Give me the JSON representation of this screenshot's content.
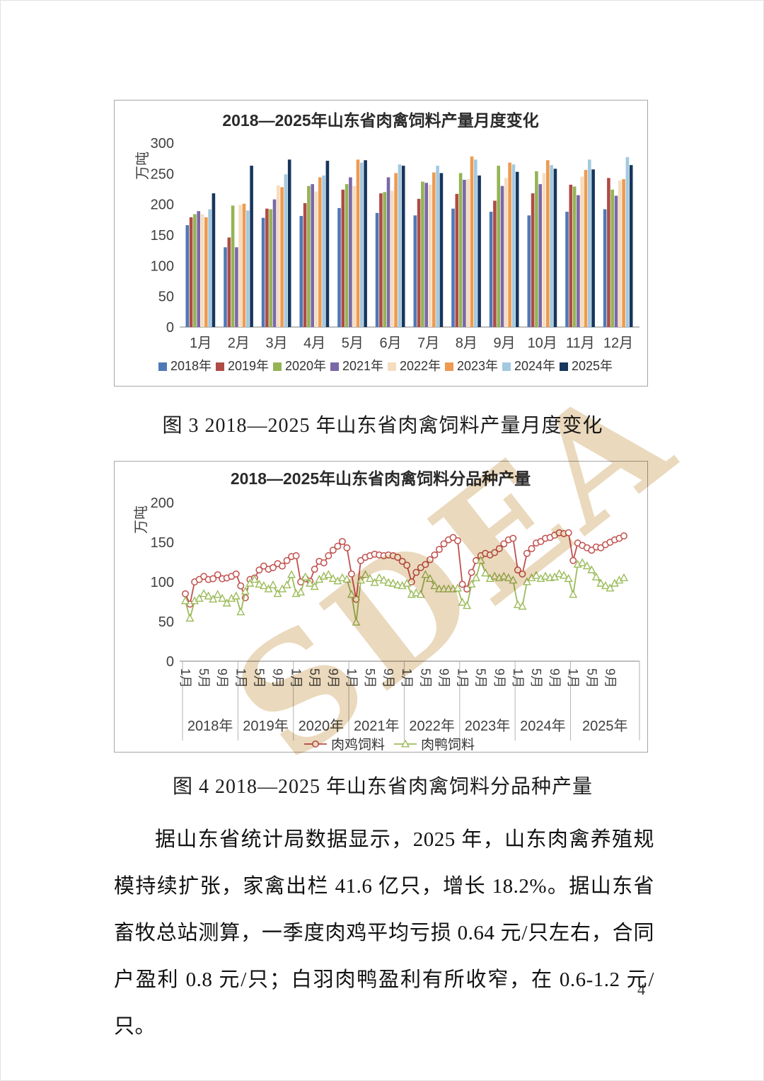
{
  "page_number": "4",
  "caption3": "图 3  2018—2025 年山东省肉禽饲料产量月度变化",
  "caption4": "图 4  2018—2025 年山东省肉禽饲料分品种产量",
  "paragraph": "据山东省统计局数据显示，2025 年，山东肉禽养殖规模持续扩张，家禽出栏 41.6 亿只，增长 18.2%。据山东省畜牧总站测算，一季度肉鸡平均亏损 0.64 元/只左右，合同户盈利 0.8 元/只；白羽肉鸭盈利有所收窄，在 0.6-1.2 元/只。",
  "watermark": {
    "text": "SDEA",
    "color": "#ead9bd"
  },
  "chart_data": [
    {
      "type": "bar",
      "title": "2018—2025年山东省肉禽饲料产量月度变化",
      "ylabel": "万吨",
      "ylim": [
        0,
        300
      ],
      "yticks": [
        0,
        50,
        100,
        150,
        200,
        250,
        300
      ],
      "grid": false,
      "legend_position": "bottom",
      "categories": [
        "1月",
        "2月",
        "3月",
        "4月",
        "5月",
        "6月",
        "7月",
        "8月",
        "9月",
        "10月",
        "11月",
        "12月"
      ],
      "series": [
        {
          "name": "2018年",
          "color": "#4e79b7",
          "values": [
            166,
            130,
            178,
            181,
            194,
            186,
            182,
            193,
            188,
            182,
            188,
            192
          ]
        },
        {
          "name": "2019年",
          "color": "#b04b45",
          "values": [
            179,
            146,
            193,
            202,
            224,
            218,
            209,
            217,
            206,
            218,
            232,
            243
          ]
        },
        {
          "name": "2020年",
          "color": "#94b455",
          "values": [
            184,
            198,
            192,
            230,
            233,
            220,
            237,
            251,
            263,
            254,
            229,
            224
          ]
        },
        {
          "name": "2021年",
          "color": "#7a68a8",
          "values": [
            189,
            130,
            208,
            233,
            244,
            244,
            235,
            240,
            230,
            233,
            215,
            214
          ]
        },
        {
          "name": "2022年",
          "color": "#f6dcbf",
          "values": [
            184,
            199,
            231,
            221,
            230,
            222,
            232,
            241,
            243,
            251,
            245,
            239
          ]
        },
        {
          "name": "2023年",
          "color": "#ed9b50",
          "values": [
            179,
            201,
            228,
            244,
            273,
            251,
            252,
            278,
            268,
            272,
            256,
            241
          ]
        },
        {
          "name": "2024年",
          "color": "#a3c9e0",
          "values": [
            192,
            190,
            249,
            247,
            268,
            265,
            263,
            273,
            265,
            264,
            273,
            277
          ]
        },
        {
          "name": "2025年",
          "color": "#17365d",
          "values": [
            218,
            263,
            273,
            271,
            272,
            263,
            251,
            247,
            253,
            258,
            257,
            264
          ]
        }
      ]
    },
    {
      "type": "line",
      "title": "2018—2025年山东省肉禽饲料分品种产量",
      "ylabel": "万吨",
      "ylim": [
        0,
        200
      ],
      "yticks": [
        0,
        50,
        100,
        150,
        200
      ],
      "grid": false,
      "legend_position": "bottom",
      "years": [
        "2018年",
        "2019年",
        "2020年",
        "2021年",
        "2022年",
        "2023年",
        "2024年",
        "2025年"
      ],
      "month_ticks": [
        "1月",
        "5月",
        "9月"
      ],
      "month_tick_indices": [
        0,
        4,
        8
      ],
      "months_per_year": 12,
      "series": [
        {
          "name": "肉鸡饲料",
          "color": "#c0504d",
          "marker": "circle",
          "values": [
            85,
            72,
            100,
            103,
            107,
            103,
            104,
            109,
            104,
            105,
            107,
            110,
            95,
            80,
            103,
            105,
            115,
            120,
            116,
            118,
            123,
            120,
            127,
            132,
            133,
            100,
            104,
            101,
            116,
            126,
            124,
            133,
            140,
            145,
            151,
            143,
            110,
            78,
            127,
            131,
            133,
            135,
            134,
            133,
            134,
            133,
            131,
            126,
            121,
            100,
            112,
            118,
            122,
            128,
            134,
            141,
            148,
            153,
            156,
            152,
            97,
            91,
            112,
            127,
            133,
            136,
            134,
            137,
            142,
            148,
            153,
            155,
            115,
            110,
            136,
            142,
            149,
            151,
            155,
            156,
            159,
            162,
            161,
            162,
            127,
            149,
            146,
            143,
            140,
            144,
            143,
            147,
            150,
            153,
            155,
            158
          ]
        },
        {
          "name": "肉鸭饲料",
          "color": "#9bbb59",
          "marker": "triangle",
          "values": [
            76,
            54,
            76,
            79,
            85,
            82,
            78,
            84,
            79,
            73,
            79,
            82,
            62,
            88,
            98,
            103,
            97,
            95,
            91,
            96,
            85,
            91,
            96,
            109,
            85,
            87,
            106,
            98,
            94,
            103,
            107,
            109,
            104,
            101,
            105,
            103,
            84,
            49,
            102,
            109,
            104,
            99,
            105,
            102,
            99,
            98,
            96,
            95,
            98,
            84,
            86,
            84,
            109,
            104,
            95,
            91,
            91,
            91,
            91,
            92,
            74,
            70,
            97,
            105,
            127,
            111,
            104,
            107,
            105,
            107,
            105,
            102,
            71,
            69,
            100,
            105,
            108,
            104,
            107,
            105,
            106,
            110,
            108,
            104,
            84,
            122,
            124,
            120,
            115,
            106,
            98,
            95,
            92,
            98,
            102,
            105
          ]
        }
      ]
    }
  ]
}
